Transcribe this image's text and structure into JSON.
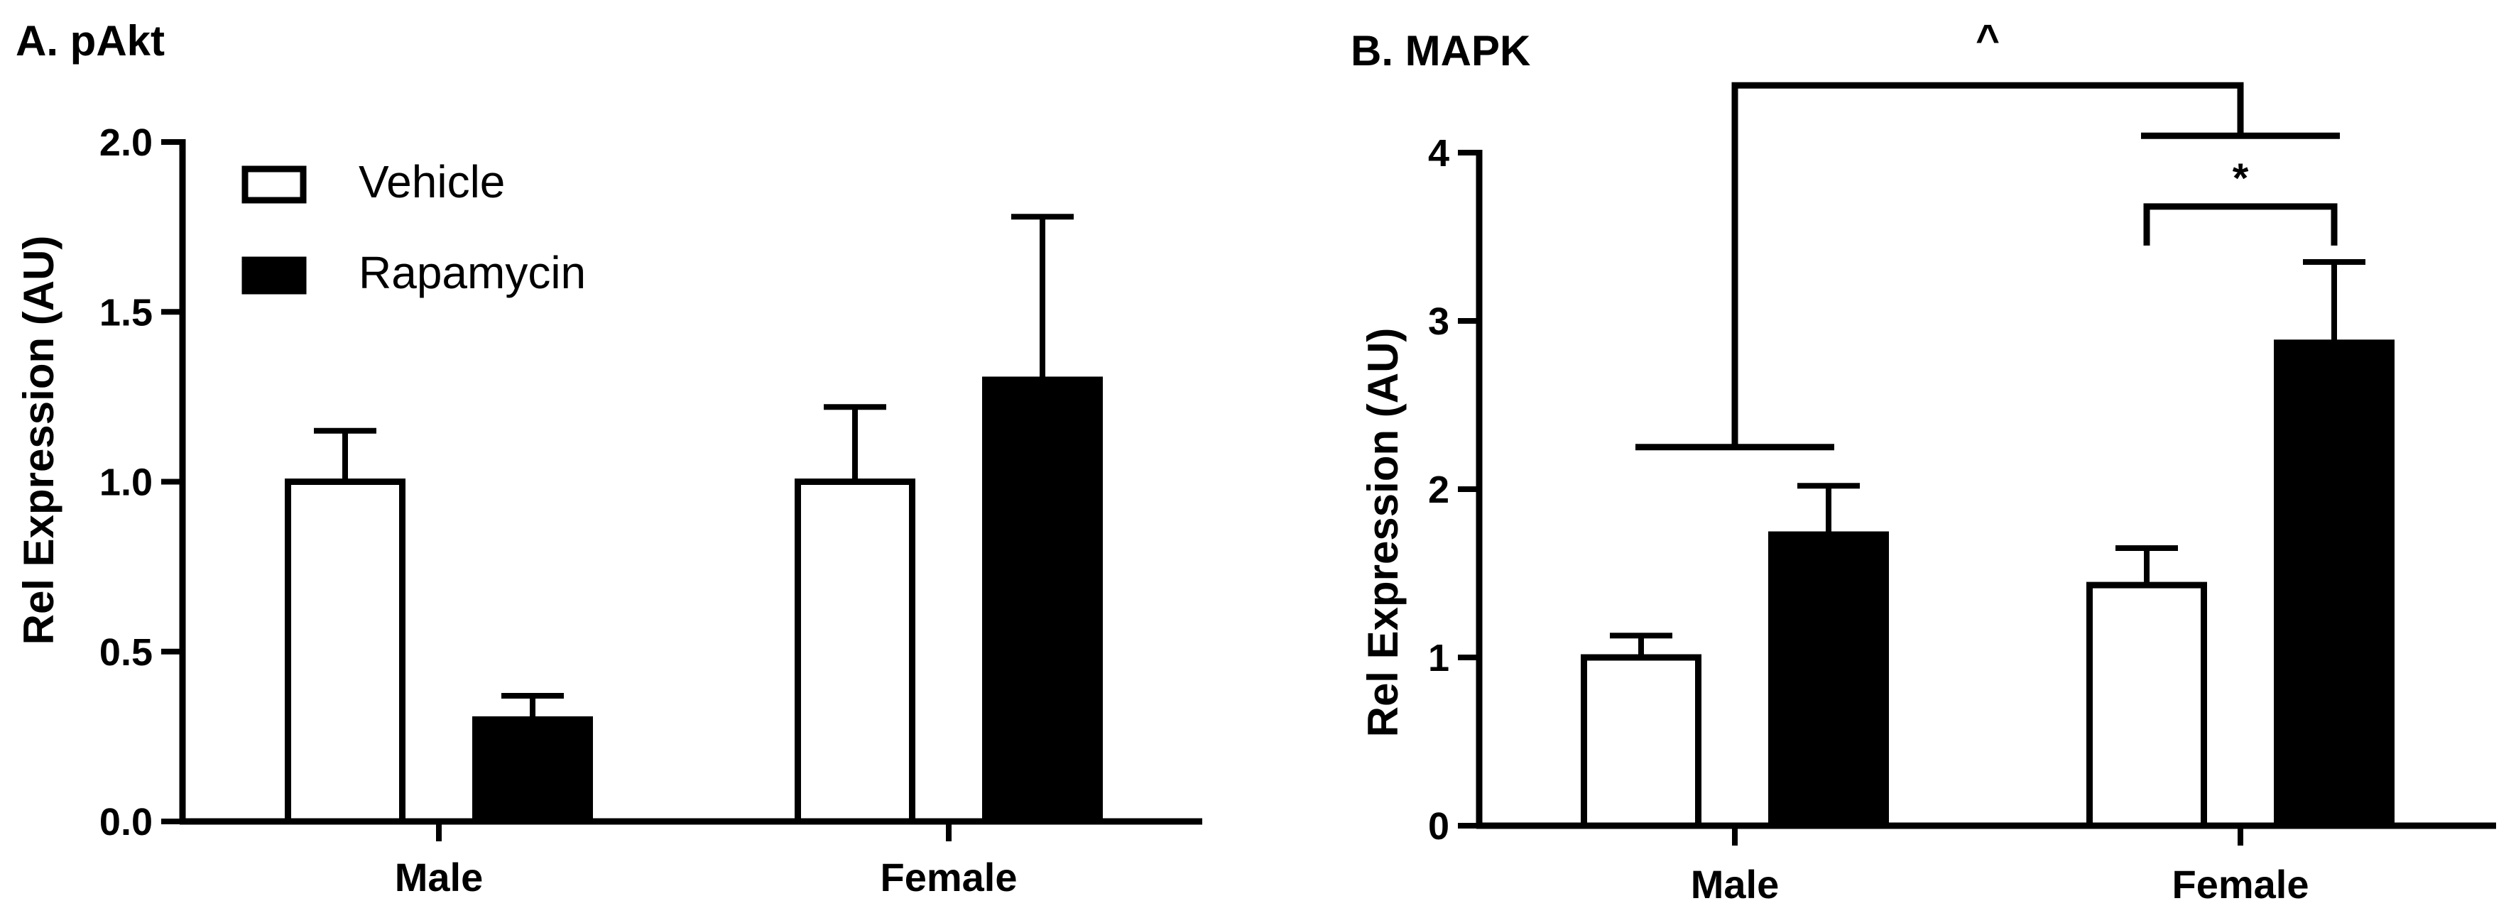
{
  "chart_data": [
    {
      "id": "A",
      "type": "bar",
      "title": "A. pAkt",
      "ylabel": "Rel Expression (AU)",
      "xlabel": "",
      "categories": [
        "Male",
        "Female"
      ],
      "ylim": [
        0,
        2.0
      ],
      "yticks": [
        0.0,
        0.5,
        1.0,
        1.5,
        2.0
      ],
      "ytick_labels": [
        "0.0",
        "0.5",
        "1.0",
        "1.5",
        "2.0"
      ],
      "series": [
        {
          "name": "Vehicle",
          "values": [
            1.0,
            1.0
          ],
          "errors": [
            0.15,
            0.22
          ]
        },
        {
          "name": "Rapamycin",
          "values": [
            0.3,
            1.3
          ],
          "errors": [
            0.07,
            0.48
          ]
        }
      ],
      "legend": {
        "position": "top-left",
        "entries": [
          "Vehicle",
          "Rapamycin"
        ]
      },
      "annotations": []
    },
    {
      "id": "B",
      "type": "bar",
      "title": "B. MAPK",
      "ylabel": "Rel Expression (AU)",
      "xlabel": "",
      "categories": [
        "Male",
        "Female"
      ],
      "ylim": [
        0,
        4
      ],
      "yticks": [
        0,
        1,
        2,
        3,
        4
      ],
      "ytick_labels": [
        "0",
        "1",
        "2",
        "3",
        "4"
      ],
      "series": [
        {
          "name": "Vehicle",
          "values": [
            1.0,
            1.43
          ],
          "errors": [
            0.13,
            0.22
          ]
        },
        {
          "name": "Rapamycin",
          "values": [
            1.73,
            2.87
          ],
          "errors": [
            0.29,
            0.48
          ]
        }
      ],
      "annotations": [
        {
          "label": "*",
          "between": "Female Vehicle vs Female Rapamycin",
          "level": 3.68
        },
        {
          "label": "^",
          "between": "Male vs Female",
          "level": 4.4
        }
      ]
    }
  ],
  "colors": {
    "vehicle_fill": "#ffffff",
    "rapamycin_fill": "#000000",
    "stroke": "#000000"
  }
}
